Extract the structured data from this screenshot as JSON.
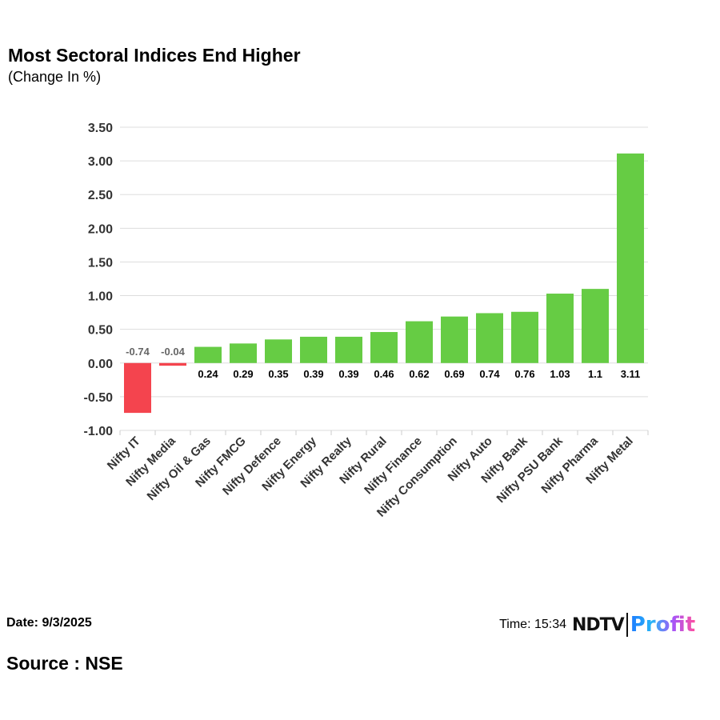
{
  "header": {
    "title": "Most Sectoral Indices End Higher",
    "subtitle": "(Change In %)"
  },
  "footer": {
    "date": "Date: 9/3/2025",
    "source": "Source : NSE",
    "time": "Time: 15:34",
    "logo_text": "NDTV Profit"
  },
  "colors": {
    "positive": "#66cc44",
    "negative": "#f4444e",
    "grid": "#dddddd"
  },
  "chart_data": {
    "type": "bar",
    "title": "Most Sectoral Indices End Higher",
    "subtitle": "(Change In %)",
    "categories": [
      "Nifty IT",
      "Nifty Media",
      "Nifty Oil & Gas",
      "Nifty FMCG",
      "Nifty Defence",
      "Nifty Energy",
      "Nifty Realty",
      "Nifty Rural",
      "Nifty Finance",
      "Nifty Consumption",
      "Nifty Auto",
      "Nifty Bank",
      "Nifty PSU Bank",
      "Nifty Pharma",
      "Nifty Metal"
    ],
    "values": [
      -0.74,
      -0.04,
      0.24,
      0.29,
      0.35,
      0.39,
      0.39,
      0.46,
      0.62,
      0.69,
      0.74,
      0.76,
      1.03,
      1.1,
      3.11
    ],
    "ylim": [
      -1.0,
      3.5
    ],
    "yticks": [
      "-1.00",
      "-0.50",
      "0.00",
      "0.50",
      "1.00",
      "1.50",
      "2.00",
      "2.50",
      "3.00",
      "3.50"
    ],
    "grid": true
  }
}
